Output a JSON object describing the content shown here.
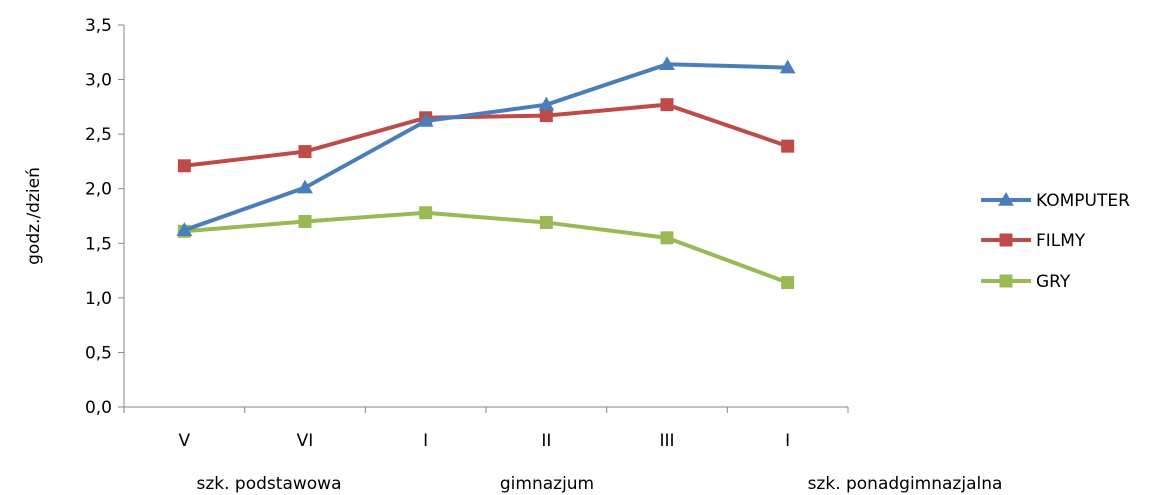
{
  "chart_data": {
    "type": "line",
    "ylabel": "godz./dzień",
    "ylim": [
      0,
      3.5
    ],
    "yticks": [
      "0,0",
      "0,5",
      "1,0",
      "1,5",
      "2,0",
      "2,5",
      "3,0",
      "3,5"
    ],
    "categories": [
      "V",
      "VI",
      "I",
      "II",
      "III",
      "I"
    ],
    "groups": [
      {
        "label": "szk. podstawowa"
      },
      {
        "label": "gimnazjum"
      },
      {
        "label": "szk. ponadgimnazjalna"
      }
    ],
    "grid": false,
    "legend_position": "right",
    "series": [
      {
        "name": "KOMPUTER",
        "color": "#4a7ebb",
        "marker": "triangle",
        "values": [
          1.62,
          2.01,
          2.62,
          2.77,
          3.14,
          3.11
        ]
      },
      {
        "name": "FILMY",
        "color": "#be4b48",
        "marker": "square",
        "values": [
          2.21,
          2.34,
          2.65,
          2.67,
          2.77,
          2.39
        ]
      },
      {
        "name": "GRY",
        "color": "#98b954",
        "marker": "square",
        "values": [
          1.61,
          1.7,
          1.78,
          1.69,
          1.55,
          1.14
        ]
      }
    ]
  }
}
